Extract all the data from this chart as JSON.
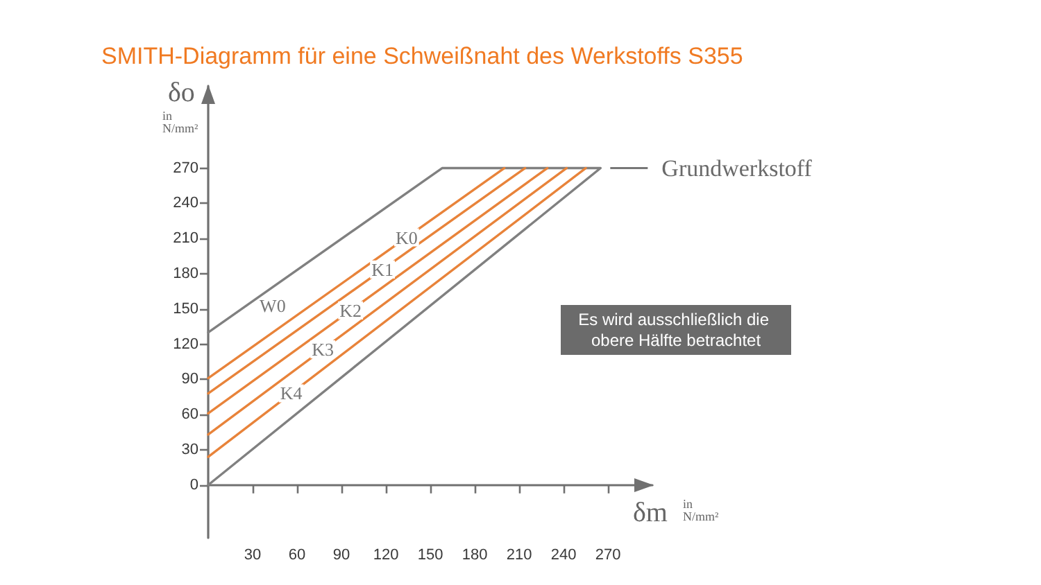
{
  "chart_data": {
    "type": "line",
    "title": "SMITH-Diagramm für eine Schweißnaht des Werkstoffs S355",
    "xlabel": "δm in N/mm²",
    "ylabel": "δo in N/mm²",
    "series": [
      {
        "name": "W0",
        "color": "#808080",
        "x": [
          0,
          158,
          265,
          0
        ],
        "values": [
          130,
          270,
          270,
          0
        ]
      },
      {
        "name": "K0",
        "color": "#e8833a",
        "x": [
          0,
          200
        ],
        "values": [
          91,
          270
        ]
      },
      {
        "name": "K1",
        "color": "#e8833a",
        "x": [
          0,
          214
        ],
        "values": [
          78,
          270
        ]
      },
      {
        "name": "K2",
        "color": "#e8833a",
        "x": [
          0,
          229
        ],
        "values": [
          61,
          270
        ]
      },
      {
        "name": "K3",
        "color": "#e8833a",
        "x": [
          0,
          242
        ],
        "values": [
          43,
          270
        ]
      },
      {
        "name": "K4",
        "color": "#e8833a",
        "x": [
          0,
          255
        ],
        "values": [
          24,
          270
        ]
      }
    ],
    "xlim": [
      0,
      300
    ],
    "xticks": [
      30,
      60,
      90,
      120,
      150,
      180,
      210,
      240,
      270
    ],
    "ylim": [
      -45,
      340
    ],
    "yticks": [
      0,
      30,
      60,
      90,
      120,
      150,
      180,
      210,
      240,
      270
    ],
    "marker": "none",
    "line_style": "solid",
    "annotations": [
      {
        "text": "Grundwerkstoff",
        "x": 265,
        "y": 270
      },
      "Es wird ausschließlich die obere Hälfte betrachtet"
    ]
  }
}
